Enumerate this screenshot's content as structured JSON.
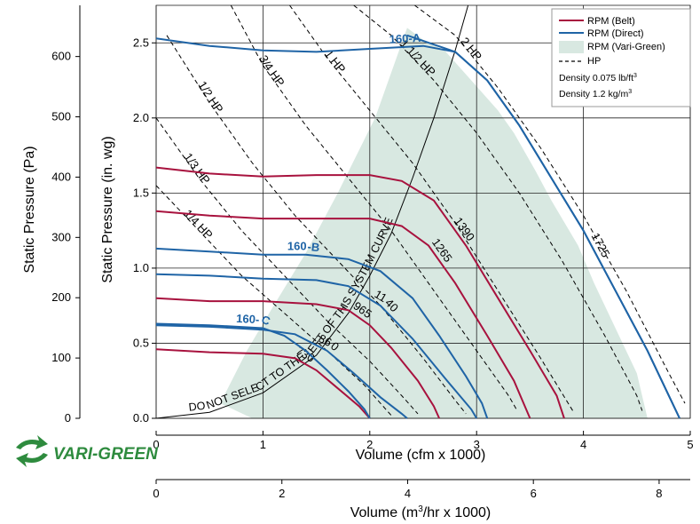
{
  "chart_data": {
    "type": "line",
    "xlabel": "Volume (cfm x 1000)",
    "ylabel": "Static Pressure (in. wg)",
    "ylabel2": "Static Pressure (Pa)",
    "xlabel2_main": "Volume (m",
    "xlabel2_sup": "3",
    "xlabel2_tail": "/hr x 1000)",
    "xlim": [
      0,
      5
    ],
    "ylim": [
      0,
      2.75
    ],
    "x2lim": [
      0,
      8.495
    ],
    "y2lim": [
      0,
      684.9
    ],
    "x_ticks": [
      "0",
      "1",
      "2",
      "3",
      "4",
      "5"
    ],
    "y_ticks": [
      "0.0",
      "0.5",
      "1.0",
      "1.5",
      "2.0",
      "2.5"
    ],
    "x2_ticks": [
      "0",
      "2",
      "4",
      "6",
      "8"
    ],
    "y2_ticks": [
      "0",
      "100",
      "200",
      "300",
      "400",
      "500",
      "600"
    ],
    "grid": true,
    "legend": {
      "position": "top-right",
      "entries": [
        "RPM (Belt)",
        "RPM (Direct)",
        "RPM (Vari-Green)",
        "HP"
      ],
      "density1_main": "Density 0.075 lb/ft",
      "density1_sup": "3",
      "density2_main": "Density 1.2 kg/m",
      "density2_sup": "3"
    },
    "colors": {
      "belt": "#a8123e",
      "direct": "#1f64a6",
      "vari_green": "#d8e8e1",
      "hp": "#000000",
      "system_curve": "#000000",
      "logo_green": "#2e8b3e"
    },
    "logo_text": "VARI-GREEN",
    "vari_green_region": [
      [
        0.6,
        0.1
      ],
      [
        0.9,
        0.0
      ],
      [
        4.6,
        0.0
      ],
      [
        4.5,
        0.3
      ],
      [
        4.3,
        0.6
      ],
      [
        4.1,
        0.9
      ],
      [
        3.95,
        1.15
      ],
      [
        3.7,
        1.45
      ],
      [
        3.55,
        1.65
      ],
      [
        3.35,
        1.9
      ],
      [
        3.2,
        2.05
      ],
      [
        2.95,
        2.25
      ],
      [
        2.7,
        2.45
      ],
      [
        2.5,
        2.52
      ],
      [
        2.35,
        2.6
      ],
      [
        2.05,
        2.0
      ],
      [
        1.7,
        1.5
      ],
      [
        1.4,
        1.1
      ],
      [
        1.1,
        0.75
      ],
      [
        0.85,
        0.45
      ],
      [
        0.6,
        0.1
      ]
    ],
    "system_curve_label": "DO NOT SELECT TO THE LEFT OF THIS SYSTEM CURVE",
    "system_curve": [
      [
        0,
        0
      ],
      [
        0.5,
        0.04
      ],
      [
        1,
        0.17
      ],
      [
        1.5,
        0.42
      ],
      [
        1.8,
        0.7
      ],
      [
        2,
        0.95
      ],
      [
        2.2,
        1.23
      ],
      [
        2.4,
        1.6
      ],
      [
        2.6,
        2.0
      ],
      [
        2.8,
        2.45
      ],
      [
        2.92,
        2.75
      ]
    ],
    "series": [
      {
        "kind": "belt",
        "label": "1390",
        "points": [
          [
            0,
            1.67
          ],
          [
            0.5,
            1.63
          ],
          [
            1,
            1.61
          ],
          [
            1.5,
            1.62
          ],
          [
            2,
            1.62
          ],
          [
            2.3,
            1.58
          ],
          [
            2.6,
            1.45
          ],
          [
            2.9,
            1.15
          ],
          [
            3.2,
            0.8
          ],
          [
            3.5,
            0.45
          ],
          [
            3.75,
            0.15
          ],
          [
            3.82,
            0
          ]
        ]
      },
      {
        "kind": "belt",
        "label": "1265",
        "points": [
          [
            0,
            1.38
          ],
          [
            0.5,
            1.35
          ],
          [
            1,
            1.33
          ],
          [
            1.5,
            1.33
          ],
          [
            2,
            1.33
          ],
          [
            2.3,
            1.28
          ],
          [
            2.55,
            1.15
          ],
          [
            2.8,
            0.9
          ],
          [
            3.1,
            0.55
          ],
          [
            3.35,
            0.25
          ],
          [
            3.5,
            0
          ]
        ]
      },
      {
        "kind": "belt",
        "label": "965",
        "points": [
          [
            0,
            0.8
          ],
          [
            0.5,
            0.78
          ],
          [
            1,
            0.78
          ],
          [
            1.5,
            0.76
          ],
          [
            1.8,
            0.72
          ],
          [
            2.0,
            0.62
          ],
          [
            2.2,
            0.47
          ],
          [
            2.45,
            0.25
          ],
          [
            2.6,
            0.08
          ],
          [
            2.65,
            0
          ]
        ]
      },
      {
        "kind": "belt",
        "label": "730",
        "points": [
          [
            0,
            0.46
          ],
          [
            0.5,
            0.44
          ],
          [
            1,
            0.43
          ],
          [
            1.3,
            0.4
          ],
          [
            1.5,
            0.32
          ],
          [
            1.7,
            0.2
          ],
          [
            1.9,
            0.08
          ],
          [
            2.0,
            0
          ]
        ]
      },
      {
        "kind": "direct",
        "label": "160-A",
        "points": [
          [
            0,
            2.53
          ],
          [
            0.5,
            2.48
          ],
          [
            1,
            2.45
          ],
          [
            1.5,
            2.44
          ],
          [
            2,
            2.46
          ],
          [
            2.5,
            2.48
          ],
          [
            2.8,
            2.44
          ],
          [
            3.1,
            2.25
          ],
          [
            3.4,
            1.95
          ],
          [
            3.7,
            1.6
          ],
          [
            4,
            1.25
          ],
          [
            4.3,
            0.85
          ],
          [
            4.6,
            0.45
          ],
          [
            4.8,
            0.15
          ],
          [
            4.9,
            0
          ]
        ]
      },
      {
        "kind": "direct",
        "label": "160-B",
        "points": [
          [
            0,
            1.13
          ],
          [
            0.5,
            1.11
          ],
          [
            1,
            1.09
          ],
          [
            1.4,
            1.09
          ],
          [
            1.8,
            1.06
          ],
          [
            2.1,
            0.98
          ],
          [
            2.4,
            0.8
          ],
          [
            2.65,
            0.55
          ],
          [
            2.9,
            0.28
          ],
          [
            3.05,
            0.1
          ],
          [
            3.1,
            0
          ]
        ]
      },
      {
        "kind": "direct",
        "label": "160-C",
        "points": [
          [
            0,
            0.63
          ],
          [
            0.5,
            0.62
          ],
          [
            1,
            0.6
          ],
          [
            1.2,
            0.55
          ],
          [
            1.4,
            0.45
          ],
          [
            1.6,
            0.32
          ],
          [
            1.8,
            0.18
          ],
          [
            1.95,
            0.06
          ],
          [
            2.0,
            0
          ]
        ]
      },
      {
        "kind": "direct",
        "label": "1140",
        "points": [
          [
            0,
            0.96
          ],
          [
            0.5,
            0.95
          ],
          [
            1,
            0.93
          ],
          [
            1.5,
            0.92
          ],
          [
            1.8,
            0.88
          ],
          [
            2.1,
            0.75
          ],
          [
            2.4,
            0.53
          ],
          [
            2.7,
            0.27
          ],
          [
            2.95,
            0.06
          ],
          [
            3.0,
            0
          ]
        ]
      },
      {
        "kind": "direct",
        "label": "860",
        "points": [
          [
            0,
            0.62
          ],
          [
            0.5,
            0.61
          ],
          [
            1,
            0.59
          ],
          [
            1.3,
            0.56
          ],
          [
            1.6,
            0.45
          ],
          [
            1.85,
            0.3
          ],
          [
            2.1,
            0.14
          ],
          [
            2.3,
            0.03
          ],
          [
            2.35,
            0
          ]
        ]
      },
      {
        "kind": "direct",
        "label": "1725",
        "points": [
          [
            2.35,
            2.55
          ],
          [
            2.8,
            2.44
          ],
          [
            3.1,
            2.25
          ],
          [
            3.4,
            1.95
          ],
          [
            3.7,
            1.6
          ],
          [
            4,
            1.25
          ],
          [
            4.3,
            0.85
          ],
          [
            4.6,
            0.45
          ],
          [
            4.8,
            0.15
          ],
          [
            4.9,
            0
          ]
        ]
      }
    ],
    "hp_curves": [
      {
        "label": "2 HP",
        "points": [
          [
            2.42,
            2.75
          ],
          [
            2.8,
            2.55
          ],
          [
            3.2,
            2.2
          ],
          [
            3.6,
            1.8
          ],
          [
            4,
            1.35
          ],
          [
            4.4,
            0.85
          ],
          [
            4.8,
            0.3
          ],
          [
            4.95,
            0.1
          ]
        ]
      },
      {
        "label": "1 1/2 HP",
        "points": [
          [
            1.85,
            2.75
          ],
          [
            2.2,
            2.55
          ],
          [
            2.6,
            2.25
          ],
          [
            3,
            1.9
          ],
          [
            3.4,
            1.5
          ],
          [
            3.8,
            1.05
          ],
          [
            4.2,
            0.55
          ],
          [
            4.5,
            0.15
          ],
          [
            4.55,
            0.05
          ]
        ]
      },
      {
        "label": "1 HP",
        "points": [
          [
            1.25,
            2.75
          ],
          [
            1.6,
            2.4
          ],
          [
            2,
            2.05
          ],
          [
            2.4,
            1.7
          ],
          [
            2.8,
            1.3
          ],
          [
            3.2,
            0.85
          ],
          [
            3.6,
            0.4
          ],
          [
            3.9,
            0.05
          ]
        ]
      },
      {
        "label": "3/4 HP",
        "points": [
          [
            0.7,
            2.75
          ],
          [
            1.0,
            2.35
          ],
          [
            1.4,
            1.95
          ],
          [
            1.8,
            1.6
          ],
          [
            2.2,
            1.25
          ],
          [
            2.6,
            0.85
          ],
          [
            3.0,
            0.45
          ],
          [
            3.3,
            0.15
          ],
          [
            3.38,
            0.05
          ]
        ]
      },
      {
        "label": "1/2 HP",
        "points": [
          [
            0.1,
            2.55
          ],
          [
            0.5,
            2.1
          ],
          [
            0.9,
            1.7
          ],
          [
            1.3,
            1.35
          ],
          [
            1.7,
            1.05
          ],
          [
            2.1,
            0.75
          ],
          [
            2.5,
            0.4
          ],
          [
            2.8,
            0.12
          ],
          [
            2.9,
            0.03
          ]
        ]
      },
      {
        "label": "1/3 HP",
        "points": [
          [
            0,
            2.0
          ],
          [
            0.4,
            1.6
          ],
          [
            0.8,
            1.25
          ],
          [
            1.2,
            0.95
          ],
          [
            1.6,
            0.65
          ],
          [
            2.0,
            0.38
          ],
          [
            2.3,
            0.15
          ],
          [
            2.45,
            0.03
          ]
        ]
      },
      {
        "label": "1/4 HP",
        "points": [
          [
            0,
            1.55
          ],
          [
            0.4,
            1.25
          ],
          [
            0.8,
            0.95
          ],
          [
            1.2,
            0.7
          ],
          [
            1.6,
            0.45
          ],
          [
            1.95,
            0.22
          ],
          [
            2.15,
            0.06
          ],
          [
            2.2,
            0.02
          ]
        ]
      }
    ]
  }
}
